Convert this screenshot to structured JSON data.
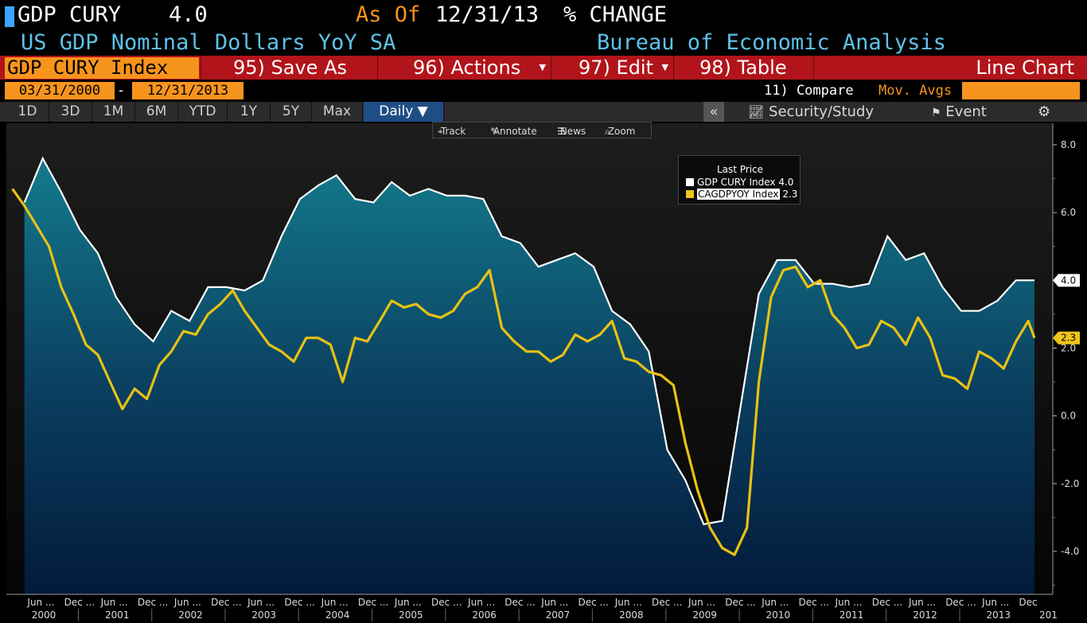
{
  "header": {
    "ticker": "GDP CURY",
    "last_value": "4.0",
    "as_of_label": "As Of",
    "as_of_date": "12/31/13",
    "change_label": "% CHANGE",
    "description": "US GDP Nominal Dollars YoY SA",
    "source": "Bureau of Economic Analysis"
  },
  "menu": {
    "security": "GDP CURY Index",
    "save_as": "95) Save As",
    "actions": "96) Actions",
    "edit": "97) Edit",
    "table": "98) Table",
    "chart_type": "Line Chart"
  },
  "range": {
    "start": "03/31/2000",
    "separator": "-",
    "end": "12/31/2013",
    "compare": "11) Compare",
    "mov_avgs": "Mov. Avgs"
  },
  "periods": [
    "1D",
    "3D",
    "1M",
    "6M",
    "YTD",
    "1Y",
    "5Y",
    "Max"
  ],
  "frequency": "Daily ▼",
  "tools": {
    "collapse": "«",
    "security_study": "Security/Study",
    "event": "Event",
    "settings": "⚙"
  },
  "chart_toolbar": {
    "track": "Track",
    "annotate": "Annotate",
    "news": "News",
    "zoom": "Zoom"
  },
  "legend": {
    "title": "Last Price",
    "items": [
      {
        "name": "GDP CURY Index",
        "value": "4.0",
        "color": "#ffffff"
      },
      {
        "name": "CAGDPYOY Index",
        "value": "2.3",
        "color": "#f0c419"
      }
    ]
  },
  "colors": {
    "area_top": "#137a8c",
    "area_bottom": "#031a3a",
    "gdp_line": "#ffffff",
    "ca_line": "#e8c114",
    "accent_orange": "#f7941d",
    "menu_red": "#b1141a"
  },
  "chart_data": {
    "type": "area",
    "ylim": [
      -5.2,
      8.2
    ],
    "y_ticks": [
      "8.0",
      "6.0",
      "4.0",
      "2.0",
      "0.0",
      "-2.0",
      "-4.0"
    ],
    "x_month_labels": [
      "Jun ...",
      "Dec ...",
      "Jun ...",
      "Dec ...",
      "Jun ...",
      "Dec ...",
      "Jun ...",
      "Dec ...",
      "Jun ...",
      "Dec ...",
      "Jun ...",
      "Dec ...",
      "Jun ...",
      "Dec ...",
      "Jun ...",
      "Dec ...",
      "Jun ...",
      "Dec ...",
      "Jun ...",
      "Dec ...",
      "Jun ...",
      "Dec ...",
      "Jun ...",
      "Dec ...",
      "Jun ...",
      "Dec ...",
      "Jun ...",
      "Dec"
    ],
    "x_year_labels": [
      "2000",
      "2001",
      "2002",
      "2003",
      "2004",
      "2005",
      "2006",
      "2007",
      "2008",
      "2009",
      "2010",
      "2011",
      "2012",
      "2013",
      "201"
    ],
    "last_value_badges": [
      {
        "series": "GDP CURY Index",
        "value": "4.0"
      },
      {
        "series": "CAGDPYOY Index",
        "value": "2.3"
      }
    ],
    "series": [
      {
        "name": "GDP CURY Index",
        "x": [
          "2000-03-31",
          "2000-06-30",
          "2000-09-30",
          "2000-12-31",
          "2001-03-31",
          "2001-06-30",
          "2001-09-30",
          "2001-12-31",
          "2002-03-31",
          "2002-06-30",
          "2002-09-30",
          "2002-12-31",
          "2003-03-31",
          "2003-06-30",
          "2003-09-30",
          "2003-12-31",
          "2004-03-31",
          "2004-06-30",
          "2004-09-30",
          "2004-12-31",
          "2005-03-31",
          "2005-06-30",
          "2005-09-30",
          "2005-12-31",
          "2006-03-31",
          "2006-06-30",
          "2006-09-30",
          "2006-12-31",
          "2007-03-31",
          "2007-06-30",
          "2007-09-30",
          "2007-12-31",
          "2008-03-31",
          "2008-06-30",
          "2008-09-30",
          "2008-12-31",
          "2009-03-31",
          "2009-06-30",
          "2009-09-30",
          "2009-12-31",
          "2010-03-31",
          "2010-06-30",
          "2010-09-30",
          "2010-12-31",
          "2011-03-31",
          "2011-06-30",
          "2011-09-30",
          "2011-12-31",
          "2012-03-31",
          "2012-06-30",
          "2012-09-30",
          "2012-12-31",
          "2013-03-31",
          "2013-06-30",
          "2013-09-30",
          "2013-12-31"
        ],
        "values": [
          6.3,
          7.6,
          6.6,
          5.5,
          4.8,
          3.5,
          2.7,
          2.2,
          3.1,
          2.8,
          3.8,
          3.8,
          3.7,
          4.0,
          5.3,
          6.4,
          6.8,
          7.1,
          6.4,
          6.3,
          6.9,
          6.5,
          6.7,
          6.5,
          6.5,
          6.4,
          5.3,
          5.1,
          4.4,
          4.6,
          4.8,
          4.4,
          3.1,
          2.7,
          1.9,
          -1.0,
          -1.9,
          -3.2,
          -3.1,
          0.3,
          3.6,
          4.6,
          4.6,
          3.9,
          3.9,
          3.8,
          3.9,
          5.3,
          4.6,
          4.8,
          3.8,
          3.1,
          3.1,
          3.4,
          4.0,
          4.0
        ]
      },
      {
        "name": "CAGDPYOY Index",
        "x": [
          "2000-01-31",
          "2000-03-31",
          "2000-05-31",
          "2000-07-31",
          "2000-09-30",
          "2000-11-30",
          "2001-01-31",
          "2001-03-31",
          "2001-05-31",
          "2001-07-31",
          "2001-09-30",
          "2001-11-30",
          "2002-01-31",
          "2002-03-31",
          "2002-05-31",
          "2002-07-31",
          "2002-09-30",
          "2002-11-30",
          "2003-01-31",
          "2003-03-31",
          "2003-05-31",
          "2003-07-31",
          "2003-09-30",
          "2003-11-30",
          "2004-01-31",
          "2004-03-31",
          "2004-05-31",
          "2004-07-31",
          "2004-09-30",
          "2004-11-30",
          "2005-01-31",
          "2005-03-31",
          "2005-05-31",
          "2005-07-31",
          "2005-09-30",
          "2005-11-30",
          "2006-01-31",
          "2006-03-31",
          "2006-05-31",
          "2006-07-31",
          "2006-09-30",
          "2006-11-30",
          "2007-01-31",
          "2007-03-31",
          "2007-05-31",
          "2007-07-31",
          "2007-09-30",
          "2007-11-30",
          "2008-01-31",
          "2008-03-31",
          "2008-05-31",
          "2008-07-31",
          "2008-09-30",
          "2008-11-30",
          "2009-01-31",
          "2009-03-31",
          "2009-05-31",
          "2009-07-31",
          "2009-09-30",
          "2009-11-30",
          "2010-01-31",
          "2010-03-31",
          "2010-05-31",
          "2010-07-31",
          "2010-09-30",
          "2010-11-30",
          "2011-01-31",
          "2011-03-31",
          "2011-05-31",
          "2011-07-31",
          "2011-09-30",
          "2011-11-30",
          "2012-01-31",
          "2012-03-31",
          "2012-05-31",
          "2012-07-31",
          "2012-09-30",
          "2012-11-30",
          "2013-01-31",
          "2013-03-31",
          "2013-05-31",
          "2013-07-31",
          "2013-09-30",
          "2013-11-30",
          "2013-12-31"
        ],
        "values": [
          6.7,
          6.2,
          5.6,
          5.0,
          3.8,
          3.0,
          2.1,
          1.8,
          1.0,
          0.2,
          0.8,
          0.5,
          1.5,
          1.9,
          2.5,
          2.4,
          3.0,
          3.3,
          3.7,
          3.1,
          2.6,
          2.1,
          1.9,
          1.6,
          2.3,
          2.3,
          2.1,
          1.0,
          2.3,
          2.2,
          2.8,
          3.4,
          3.2,
          3.3,
          3.0,
          2.9,
          3.1,
          3.6,
          3.8,
          4.3,
          2.6,
          2.2,
          1.9,
          1.9,
          1.6,
          1.8,
          2.4,
          2.2,
          2.4,
          2.8,
          1.7,
          1.6,
          1.3,
          1.2,
          0.9,
          -0.8,
          -2.2,
          -3.3,
          -3.9,
          -4.1,
          -3.3,
          1.0,
          3.5,
          4.3,
          4.4,
          3.8,
          4.0,
          3.0,
          2.6,
          2.0,
          2.1,
          2.8,
          2.6,
          2.1,
          2.9,
          2.3,
          1.2,
          1.1,
          0.8,
          1.9,
          1.7,
          1.4,
          2.2,
          2.8,
          2.3
        ]
      }
    ]
  }
}
